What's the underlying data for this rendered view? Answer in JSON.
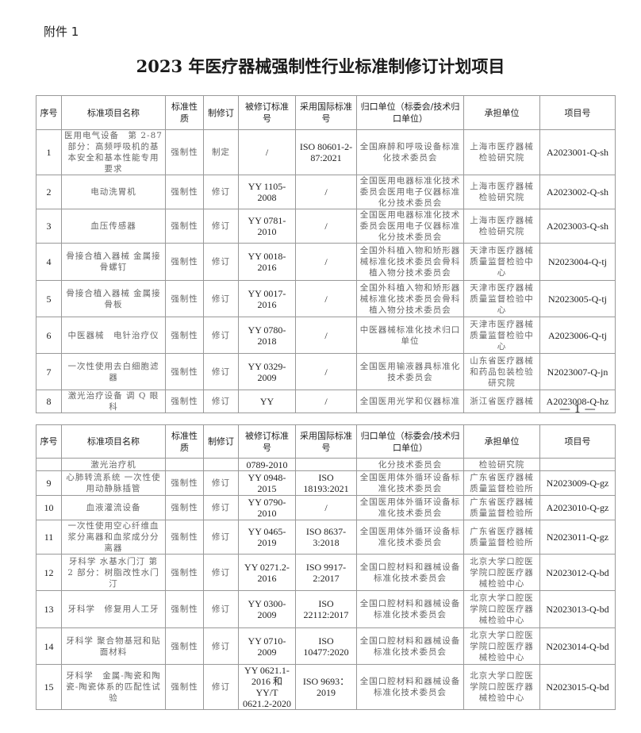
{
  "attachment_label": "附件 1",
  "title": "2023 年医疗器械强制性行业标准制修订计划项目",
  "page_number": "— 1 —",
  "headers": [
    "序号",
    "标准项目名称",
    "标准性质",
    "制修订",
    "被修订标准号",
    "采用国际标准号",
    "归口单位（标委会/技术归口单位）",
    "承担单位",
    "项目号"
  ],
  "page1_rows": [
    [
      "1",
      "医用电气设备　第 2-87 部分：高频呼吸机的基本安全和基本性能专用要求",
      "强制性",
      "制定",
      "/",
      "ISO 80601-2-87:2021",
      "全国麻醉和呼吸设备标准化技术委员会",
      "上海市医疗器械检验研究院",
      "A2023001-Q-sh"
    ],
    [
      "2",
      "电动洗胃机",
      "强制性",
      "修订",
      "YY 1105-2008",
      "/",
      "全国医用电器标准化技术委员会医用电子仪器标准化分技术委员会",
      "上海市医疗器械检验研究院",
      "A2023002-Q-sh"
    ],
    [
      "3",
      "血压传感器",
      "强制性",
      "修订",
      "YY 0781-2010",
      "/",
      "全国医用电器标准化技术委员会医用电子仪器标准化分技术委员会",
      "上海市医疗器械检验研究院",
      "A2023003-Q-sh"
    ],
    [
      "4",
      "骨接合植入器械 金属接骨螺钉",
      "强制性",
      "修订",
      "YY 0018-2016",
      "/",
      "全国外科植入物和矫形器械标准化技术委员会骨科植入物分技术委员会",
      "天津市医疗器械质量监督检验中心",
      "N2023004-Q-tj"
    ],
    [
      "5",
      "骨接合植入器械 金属接骨板",
      "强制性",
      "修订",
      "YY 0017-2016",
      "/",
      "全国外科植入物和矫形器械标准化技术委员会骨科植入物分技术委员会",
      "天津市医疗器械质量监督检验中心",
      "N2023005-Q-tj"
    ],
    [
      "6",
      "中医器械　电针治疗仪",
      "强制性",
      "修订",
      "YY 0780-2018",
      "/",
      "中医器械标准化技术归口单位",
      "天津市医疗器械质量监督检验中心",
      "A2023006-Q-tj"
    ],
    [
      "7",
      "一次性使用去白细胞滤器",
      "强制性",
      "修订",
      "YY 0329-2009",
      "/",
      "全国医用输液器具标准化技术委员会",
      "山东省医疗器械和药品包装检验研究院",
      "N2023007-Q-jn"
    ],
    [
      "8",
      "激光治疗设备 调 Q 眼科",
      "强制性",
      "修订",
      "YY",
      "/",
      "全国医用光学和仪器标准",
      "浙江省医疗器械",
      "A2023008-Q-hz"
    ]
  ],
  "page2_rows": [
    [
      "",
      "激光治疗机",
      "",
      "",
      "0789-2010",
      "",
      "化分技术委员会",
      "检验研究院",
      ""
    ],
    [
      "9",
      "心肺转流系统 一次性使用动静脉插管",
      "强制性",
      "修订",
      "YY 0948-2015",
      "ISO 18193:2021",
      "全国医用体外循环设备标准化技术委员会",
      "广东省医疗器械质量监督检验所",
      "N2023009-Q-gz"
    ],
    [
      "10",
      "血液灌流设备",
      "强制性",
      "修订",
      "YY 0790-2010",
      "/",
      "全国医用体外循环设备标准化技术委员会",
      "广东省医疗器械质量监督检验所",
      "A2023010-Q-gz"
    ],
    [
      "11",
      "一次性使用空心纤维血浆分离器和血浆成分分离器",
      "强制性",
      "修订",
      "YY 0465-2019",
      "ISO 8637-3:2018",
      "全国医用体外循环设备标准化技术委员会",
      "广东省医疗器械质量监督检验所",
      "N2023011-Q-gz"
    ],
    [
      "12",
      "牙科学 水基水门汀 第 2 部分：树脂改性水门汀",
      "强制性",
      "修订",
      "YY 0271.2-2016",
      "ISO 9917-2:2017",
      "全国口腔材料和器械设备标准化技术委员会",
      "北京大学口腔医学院口腔医疗器械检验中心",
      "N2023012-Q-bd"
    ],
    [
      "13",
      "牙科学　修复用人工牙",
      "强制性",
      "修订",
      "YY 0300-2009",
      "ISO 22112:2017",
      "全国口腔材料和器械设备标准化技术委员会",
      "北京大学口腔医学院口腔医疗器械检验中心",
      "N2023013-Q-bd"
    ],
    [
      "14",
      "牙科学 聚合物基冠和贴面材料",
      "强制性",
      "修订",
      "YY 0710-2009",
      "ISO 10477:2020",
      "全国口腔材料和器械设备标准化技术委员会",
      "北京大学口腔医学院口腔医疗器械检验中心",
      "N2023014-Q-bd"
    ],
    [
      "15",
      "牙科学　金属-陶瓷和陶瓷-陶瓷体系的匹配性试验",
      "强制性",
      "修订",
      "YY 0621.1-2016 和 YY/T 0621.2-2020",
      "ISO 9693：2019",
      "全国口腔材料和器械设备标准化技术委员会",
      "北京大学口腔医学院口腔医疗器械检验中心",
      "N2023015-Q-bd"
    ]
  ]
}
